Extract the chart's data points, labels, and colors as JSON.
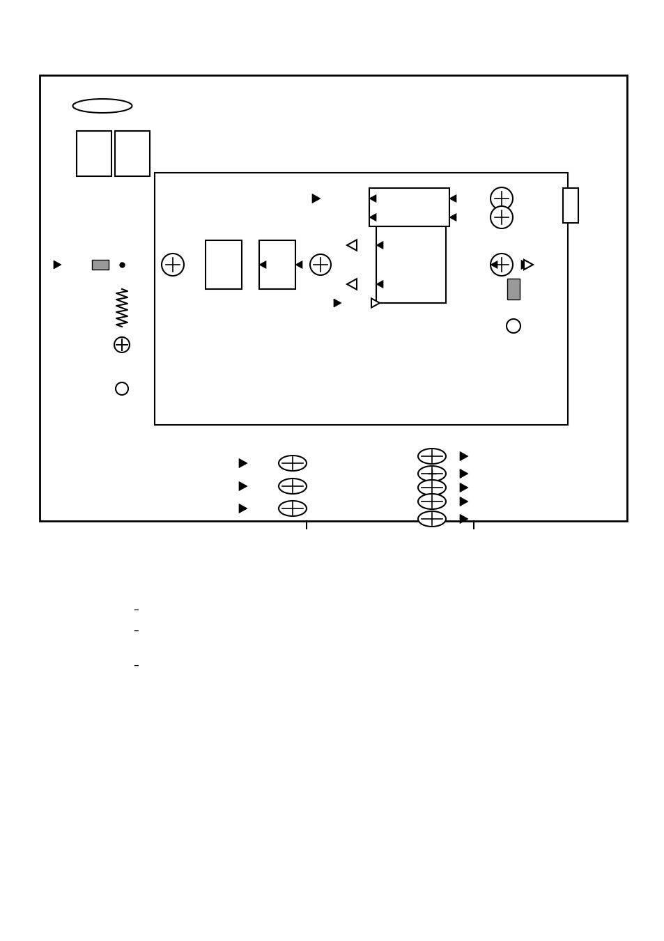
{
  "bg_color": "#ffffff",
  "fig_width": 9.54,
  "fig_height": 13.51,
  "dpi": 100
}
